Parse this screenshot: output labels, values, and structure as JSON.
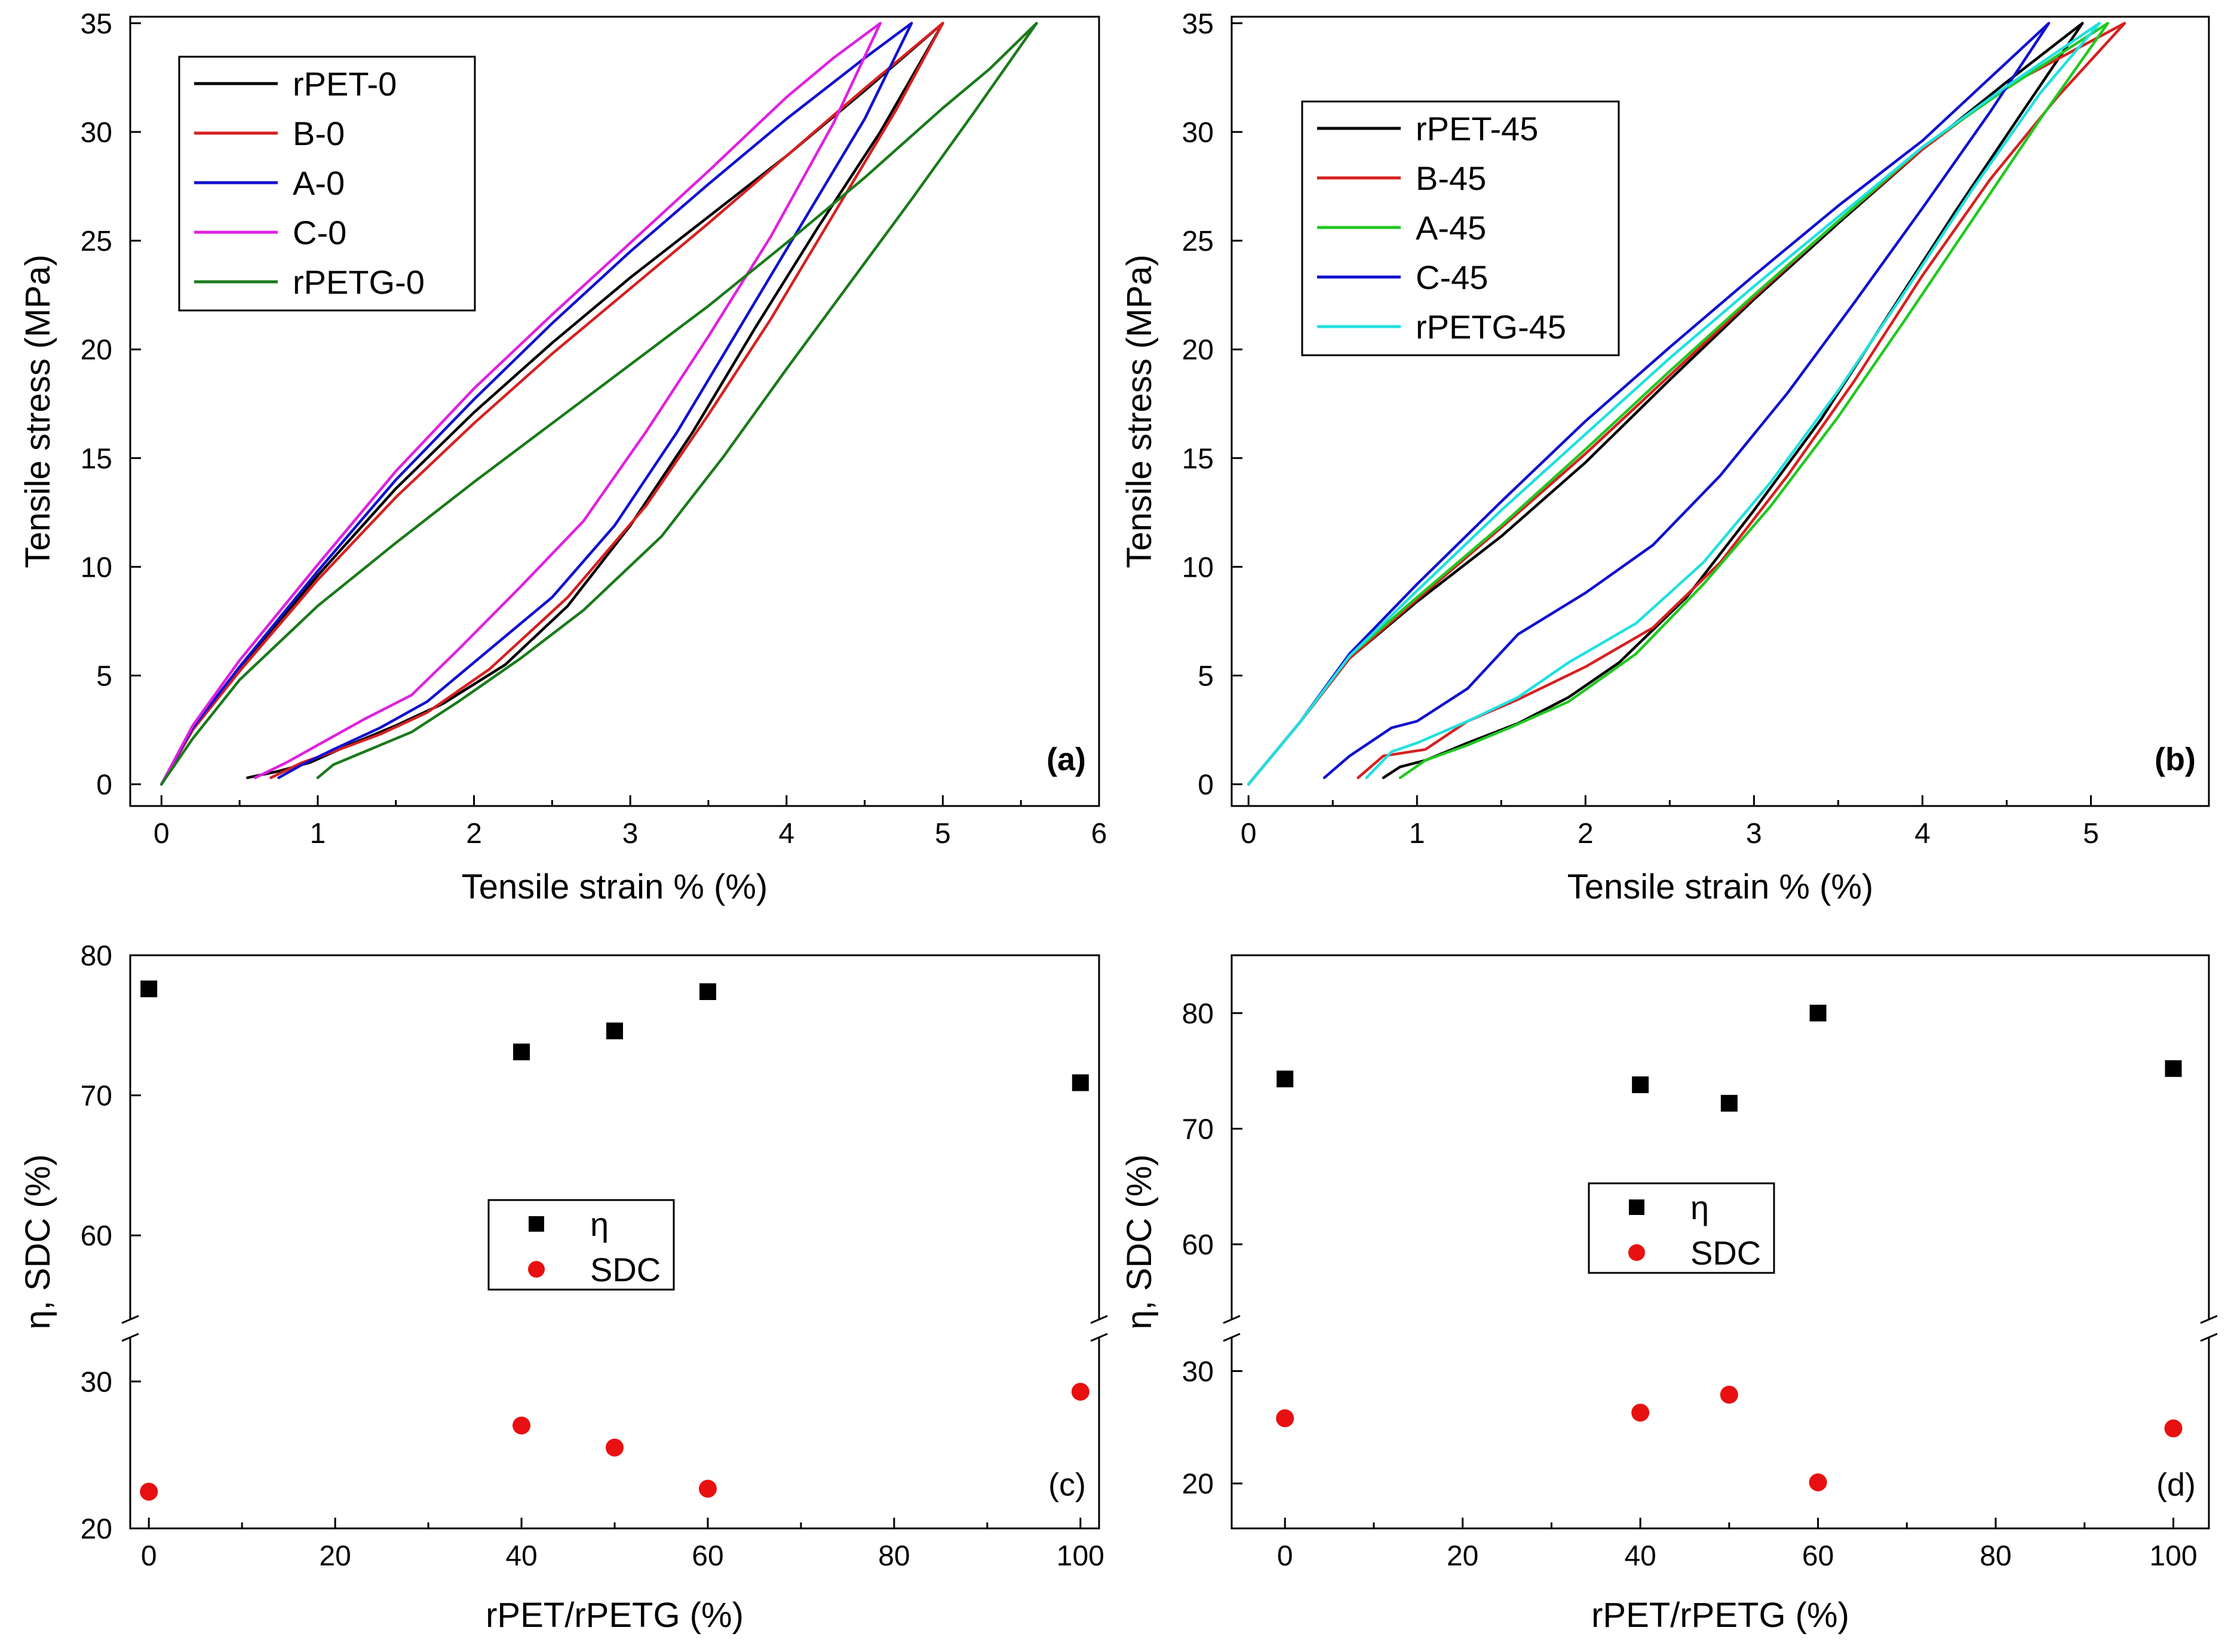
{
  "chart_data": [
    {
      "id": "a",
      "type": "line",
      "panel_label": "(a)",
      "xlabel": "Tensile strain % (%)",
      "ylabel": "Tensile stress (MPa)",
      "xlim": [
        -0.2,
        6
      ],
      "ylim": [
        -1,
        35.3
      ],
      "xticks": [
        0,
        1,
        2,
        3,
        4,
        5,
        6
      ],
      "yticks": [
        0,
        5,
        10,
        15,
        20,
        25,
        30,
        35
      ],
      "legend_position": "top-left",
      "series": [
        {
          "name": "rPET-0",
          "color": "#000000",
          "x": [
            0,
            0.2,
            0.5,
            1.0,
            1.5,
            2.0,
            2.5,
            3.0,
            3.5,
            4.0,
            4.5,
            5.0,
            4.6,
            4.2,
            3.8,
            3.4,
            3.0,
            2.6,
            2.2,
            1.8,
            1.5,
            1.2,
            0.95,
            0.75,
            0.55
          ],
          "y": [
            0,
            2.5,
            5.3,
            9.6,
            13.6,
            17.1,
            20.3,
            23.3,
            26.1,
            28.9,
            31.9,
            35,
            30.0,
            25.6,
            21.0,
            16.2,
            11.9,
            8.2,
            5.5,
            3.7,
            2.7,
            1.8,
            1.0,
            0.6,
            0.3
          ]
        },
        {
          "name": "B-0",
          "color": "#d62020",
          "x": [
            0,
            0.2,
            0.5,
            1.0,
            1.5,
            2.0,
            2.5,
            3.0,
            3.5,
            4.0,
            4.5,
            5.0,
            4.7,
            4.3,
            3.9,
            3.5,
            3.1,
            2.6,
            2.1,
            1.7,
            1.4,
            1.1,
            0.9,
            0.7
          ],
          "y": [
            0,
            2.5,
            5.2,
            9.4,
            13.2,
            16.6,
            19.8,
            22.8,
            25.8,
            28.9,
            32.0,
            35,
            31.0,
            26.2,
            21.4,
            17.0,
            12.8,
            8.6,
            5.3,
            3.3,
            2.3,
            1.5,
            1.0,
            0.3
          ]
        },
        {
          "name": "A-0",
          "color": "#1010d0",
          "x": [
            0,
            0.2,
            0.5,
            1.0,
            1.5,
            2.0,
            2.5,
            3.0,
            3.5,
            4.0,
            4.5,
            4.8,
            4.5,
            4.1,
            3.7,
            3.3,
            2.9,
            2.5,
            2.0,
            1.7,
            1.4,
            1.1,
            0.9,
            0.75
          ],
          "y": [
            0,
            2.6,
            5.4,
            9.8,
            14.0,
            17.7,
            21.2,
            24.5,
            27.6,
            30.6,
            33.4,
            35,
            30.6,
            25.8,
            21.0,
            16.2,
            11.9,
            8.6,
            5.6,
            3.8,
            2.6,
            1.6,
            0.9,
            0.3
          ]
        },
        {
          "name": "C-0",
          "color": "#e020e0",
          "x": [
            0,
            0.2,
            0.5,
            1.0,
            1.5,
            2.0,
            2.5,
            3.0,
            3.5,
            4.0,
            4.3,
            4.6,
            4.3,
            3.9,
            3.5,
            3.1,
            2.7,
            2.3,
            1.9,
            1.6,
            1.3,
            1.0,
            0.8,
            0.6
          ],
          "y": [
            0,
            2.7,
            5.7,
            10.1,
            14.4,
            18.2,
            21.6,
            24.9,
            28.2,
            31.6,
            33.4,
            35,
            30.4,
            25.2,
            20.6,
            16.2,
            12.1,
            9.1,
            6.2,
            4.1,
            3.0,
            1.8,
            1.0,
            0.3
          ]
        },
        {
          "name": "rPETG-0",
          "color": "#1a7a1a",
          "x": [
            0,
            0.2,
            0.5,
            1.0,
            1.5,
            2.0,
            2.5,
            3.0,
            3.5,
            4.0,
            4.5,
            5.0,
            5.3,
            5.6,
            5.2,
            4.8,
            4.4,
            4.0,
            3.6,
            3.2,
            2.7,
            2.3,
            1.9,
            1.6,
            1.3,
            1.1,
            1.0
          ],
          "y": [
            0,
            2.1,
            4.8,
            8.2,
            11.1,
            13.9,
            16.6,
            19.3,
            22.0,
            24.9,
            27.9,
            31.1,
            32.9,
            35,
            30.9,
            26.9,
            23.0,
            19.1,
            15.1,
            11.4,
            8.0,
            5.8,
            3.8,
            2.4,
            1.5,
            0.9,
            0.3
          ]
        }
      ]
    },
    {
      "id": "b",
      "type": "line",
      "panel_label": "(b)",
      "xlabel": "Tensile strain % (%)",
      "ylabel": "Tensile stress (MPa)",
      "xlim": [
        -0.1,
        5.7
      ],
      "ylim": [
        -1,
        35.3
      ],
      "xticks": [
        0,
        1,
        2,
        3,
        4,
        5
      ],
      "yticks": [
        0,
        5,
        10,
        15,
        20,
        25,
        30,
        35
      ],
      "legend_position": "top-left",
      "series": [
        {
          "name": "rPET-45",
          "color": "#000000",
          "x": [
            0,
            0.3,
            0.6,
            1.0,
            1.5,
            2.0,
            2.5,
            3.0,
            3.5,
            4.0,
            4.5,
            4.95,
            4.6,
            4.2,
            3.8,
            3.4,
            3.0,
            2.6,
            2.2,
            1.9,
            1.6,
            1.3,
            1.05,
            0.9,
            0.8
          ],
          "y": [
            0,
            2.8,
            5.8,
            8.4,
            11.4,
            14.8,
            18.6,
            22.3,
            25.8,
            29.2,
            32.3,
            35,
            31.0,
            26.4,
            21.6,
            16.8,
            12.6,
            8.6,
            5.6,
            4.0,
            2.8,
            1.9,
            1.1,
            0.8,
            0.3
          ]
        },
        {
          "name": "B-45",
          "color": "#d62020",
          "x": [
            0,
            0.3,
            0.6,
            1.0,
            1.5,
            2.0,
            2.5,
            3.0,
            3.5,
            4.0,
            4.5,
            5.2,
            4.8,
            4.4,
            4.0,
            3.6,
            3.2,
            2.8,
            2.4,
            2.0,
            1.6,
            1.3,
            1.05,
            0.8,
            0.65
          ],
          "y": [
            0,
            2.8,
            5.8,
            8.5,
            11.8,
            15.2,
            18.8,
            22.4,
            25.9,
            29.2,
            32.1,
            35,
            31.6,
            27.8,
            23.4,
            18.6,
            14.2,
            10.2,
            7.2,
            5.4,
            3.9,
            2.9,
            1.6,
            1.3,
            0.3
          ]
        },
        {
          "name": "A-45",
          "color": "#20c820",
          "x": [
            0,
            0.3,
            0.6,
            1.0,
            1.5,
            2.0,
            2.5,
            3.0,
            3.5,
            4.0,
            4.5,
            5.1,
            4.7,
            4.3,
            3.9,
            3.5,
            3.1,
            2.7,
            2.3,
            1.9,
            1.55,
            1.3,
            1.05,
            0.9
          ],
          "y": [
            0,
            2.8,
            5.9,
            8.6,
            11.9,
            15.4,
            19.0,
            22.5,
            25.9,
            29.3,
            32.0,
            35,
            30.6,
            26.0,
            21.4,
            16.9,
            12.8,
            9.2,
            6.0,
            3.8,
            2.6,
            1.8,
            1.1,
            0.3
          ]
        },
        {
          "name": "C-45",
          "color": "#1010d0",
          "x": [
            0,
            0.3,
            0.6,
            1.0,
            1.5,
            2.0,
            2.5,
            3.0,
            3.5,
            4.0,
            4.75,
            4.4,
            4.0,
            3.6,
            3.2,
            2.8,
            2.4,
            2.0,
            1.6,
            1.3,
            1.0,
            0.85,
            0.6,
            0.45
          ],
          "y": [
            0,
            2.8,
            6.0,
            9.2,
            13.0,
            16.7,
            20.1,
            23.4,
            26.6,
            29.6,
            35,
            30.9,
            26.5,
            22.2,
            18.0,
            14.2,
            11.0,
            8.8,
            6.9,
            4.4,
            2.9,
            2.6,
            1.3,
            0.3
          ]
        },
        {
          "name": "rPETG-45",
          "color": "#20e0e0",
          "x": [
            0,
            0.3,
            0.6,
            1.0,
            1.5,
            2.0,
            2.5,
            3.0,
            3.5,
            4.0,
            4.5,
            5.05,
            4.7,
            4.3,
            3.9,
            3.5,
            3.1,
            2.7,
            2.3,
            1.9,
            1.6,
            1.3,
            1.0,
            0.85,
            0.7
          ],
          "y": [
            0,
            2.8,
            5.9,
            8.9,
            12.6,
            16.1,
            19.6,
            22.9,
            26.1,
            29.3,
            32.1,
            35,
            31.8,
            27.4,
            22.7,
            18.1,
            13.9,
            10.2,
            7.4,
            5.6,
            4.0,
            2.9,
            1.9,
            1.5,
            0.3
          ]
        }
      ]
    },
    {
      "id": "c",
      "type": "scatter",
      "panel_label": "(c)",
      "xlabel": "rPET/rPETG (%)",
      "ylabel": "η, SDC (%)",
      "xlim": [
        -2,
        102
      ],
      "xticks": [
        0,
        20,
        40,
        60,
        80,
        100
      ],
      "axis_break": true,
      "upper_ylim": [
        54,
        80
      ],
      "upper_yticks": [
        60,
        70,
        80
      ],
      "lower_ylim": [
        20,
        33
      ],
      "lower_yticks": [
        20,
        30
      ],
      "legend_position": "center",
      "series": [
        {
          "name": "η",
          "marker": "square",
          "color": "#000000",
          "x": [
            0,
            40,
            50,
            60,
            100
          ],
          "y": [
            77.6,
            73.1,
            74.6,
            77.4,
            70.9
          ]
        },
        {
          "name": "SDC",
          "marker": "circle",
          "color": "#e81010",
          "x": [
            0,
            40,
            50,
            60,
            100
          ],
          "y": [
            22.5,
            27.0,
            25.5,
            22.7,
            29.3
          ]
        }
      ]
    },
    {
      "id": "d",
      "type": "scatter",
      "panel_label": "(d)",
      "xlabel": "rPET/rPETG (%)",
      "ylabel": "η, SDC (%)",
      "xlim": [
        -6,
        104
      ],
      "xticks": [
        0,
        20,
        40,
        60,
        80,
        100
      ],
      "axis_break": true,
      "upper_ylim": [
        53.5,
        85
      ],
      "upper_yticks": [
        60,
        70,
        80
      ],
      "lower_ylim": [
        16,
        33
      ],
      "lower_yticks": [
        20,
        30
      ],
      "legend_position": "center-left",
      "series": [
        {
          "name": "η",
          "marker": "square",
          "color": "#000000",
          "x": [
            0,
            40,
            50,
            60,
            100
          ],
          "y": [
            74.3,
            73.8,
            72.2,
            80.0,
            75.2
          ]
        },
        {
          "name": "SDC",
          "marker": "circle",
          "color": "#e81010",
          "x": [
            0,
            40,
            50,
            60,
            100
          ],
          "y": [
            25.8,
            26.3,
            27.9,
            20.1,
            24.9
          ]
        }
      ]
    }
  ]
}
